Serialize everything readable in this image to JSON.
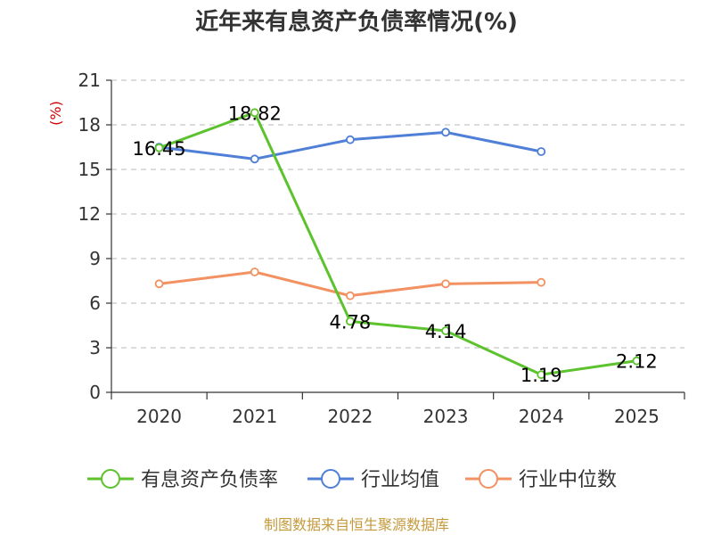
{
  "title": "近年来有息资产负债率情况(%)",
  "source": "制图数据来自恒生聚源数据库",
  "chart_data": {
    "type": "line",
    "title": "近年来有息资产负债率情况(%)",
    "ylabel": "(%)",
    "xlabel": "",
    "categories": [
      "2020",
      "2021",
      "2022",
      "2023",
      "2024",
      "2025"
    ],
    "ylim": [
      0,
      21
    ],
    "yticks": [
      0,
      3,
      6,
      9,
      12,
      15,
      18,
      21
    ],
    "grid": "horizontal-dashed",
    "legend_position": "bottom",
    "series": [
      {
        "name": "有息资产负债率",
        "color": "#5cc22d",
        "values": [
          16.45,
          18.82,
          4.78,
          4.14,
          1.19,
          2.12
        ],
        "labels": [
          "16.45",
          "18.82",
          "4.78",
          "4.14",
          "1.19",
          "2.12"
        ]
      },
      {
        "name": "行业均值",
        "color": "#4f7fd6",
        "values": [
          16.5,
          15.7,
          17.0,
          17.5,
          16.2,
          null
        ]
      },
      {
        "name": "行业中位数",
        "color": "#f29161",
        "values": [
          7.3,
          8.1,
          6.5,
          7.3,
          7.4,
          null
        ]
      }
    ]
  }
}
